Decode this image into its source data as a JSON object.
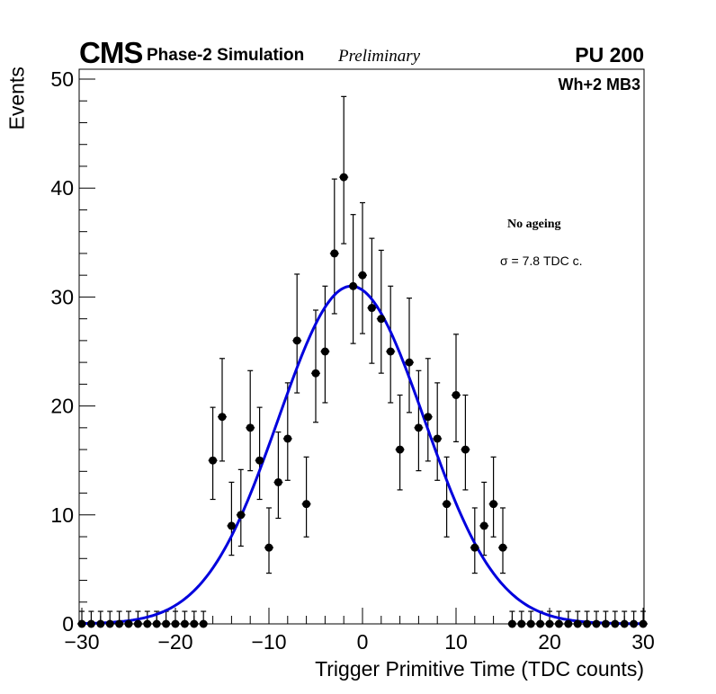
{
  "header": {
    "experiment": "CMS",
    "label": "Phase-2 Simulation",
    "status": "Preliminary",
    "pileup": "PU 200",
    "chamber": "Wh+2 MB3"
  },
  "annotations": {
    "condition": "No ageing",
    "sigma_text": "σ = 7.8 TDC c."
  },
  "colors": {
    "fit": "#0000dd",
    "points": "#000000"
  },
  "chart_data": {
    "type": "scatter",
    "title": "",
    "xlabel": "Trigger Primitive Time (TDC counts)",
    "ylabel": "Events",
    "xlim": [
      -30,
      30
    ],
    "ylim": [
      0,
      51
    ],
    "xticks": [
      -30,
      -20,
      -10,
      0,
      10,
      20,
      30
    ],
    "xtick_labels": [
      "−30",
      "−20",
      "−10",
      "0",
      "10",
      "20",
      "30"
    ],
    "yticks": [
      0,
      10,
      20,
      30,
      40,
      50
    ],
    "ytick_labels": [
      "0",
      "10",
      "20",
      "30",
      "40",
      "50"
    ],
    "grid": false,
    "legend": "none",
    "series": [
      {
        "name": "Data",
        "style": "points-with-poisson-errors",
        "x": [
          -30,
          -29,
          -28,
          -27,
          -26,
          -25,
          -24,
          -23,
          -22,
          -21,
          -20,
          -19,
          -18,
          -17,
          -16,
          -15,
          -14,
          -13,
          -12,
          -11,
          -10,
          -9,
          -8,
          -7,
          -6,
          -5,
          -4,
          -3,
          -2,
          -1,
          0,
          1,
          2,
          3,
          4,
          5,
          6,
          7,
          8,
          9,
          10,
          11,
          12,
          13,
          14,
          15,
          16,
          17,
          18,
          19,
          20,
          21,
          22,
          23,
          24,
          25,
          26,
          27,
          28,
          29,
          30
        ],
        "y": [
          0,
          0,
          0,
          0,
          0,
          0,
          0,
          0,
          0,
          0,
          0,
          0,
          0,
          0,
          15,
          19,
          9,
          10,
          18,
          15,
          7,
          13,
          17,
          26,
          11,
          23,
          25,
          34,
          41,
          31,
          32,
          29,
          28,
          25,
          16,
          24,
          18,
          19,
          17,
          11,
          21,
          16,
          7,
          9,
          11,
          7,
          0,
          0,
          0,
          0,
          0,
          0,
          0,
          0,
          0,
          0,
          0,
          0,
          0,
          0,
          0
        ]
      },
      {
        "name": "Gaussian fit",
        "style": "line",
        "function": "gaussian",
        "amplitude": 31,
        "mean": -1.2,
        "sigma": 7.8
      }
    ]
  }
}
